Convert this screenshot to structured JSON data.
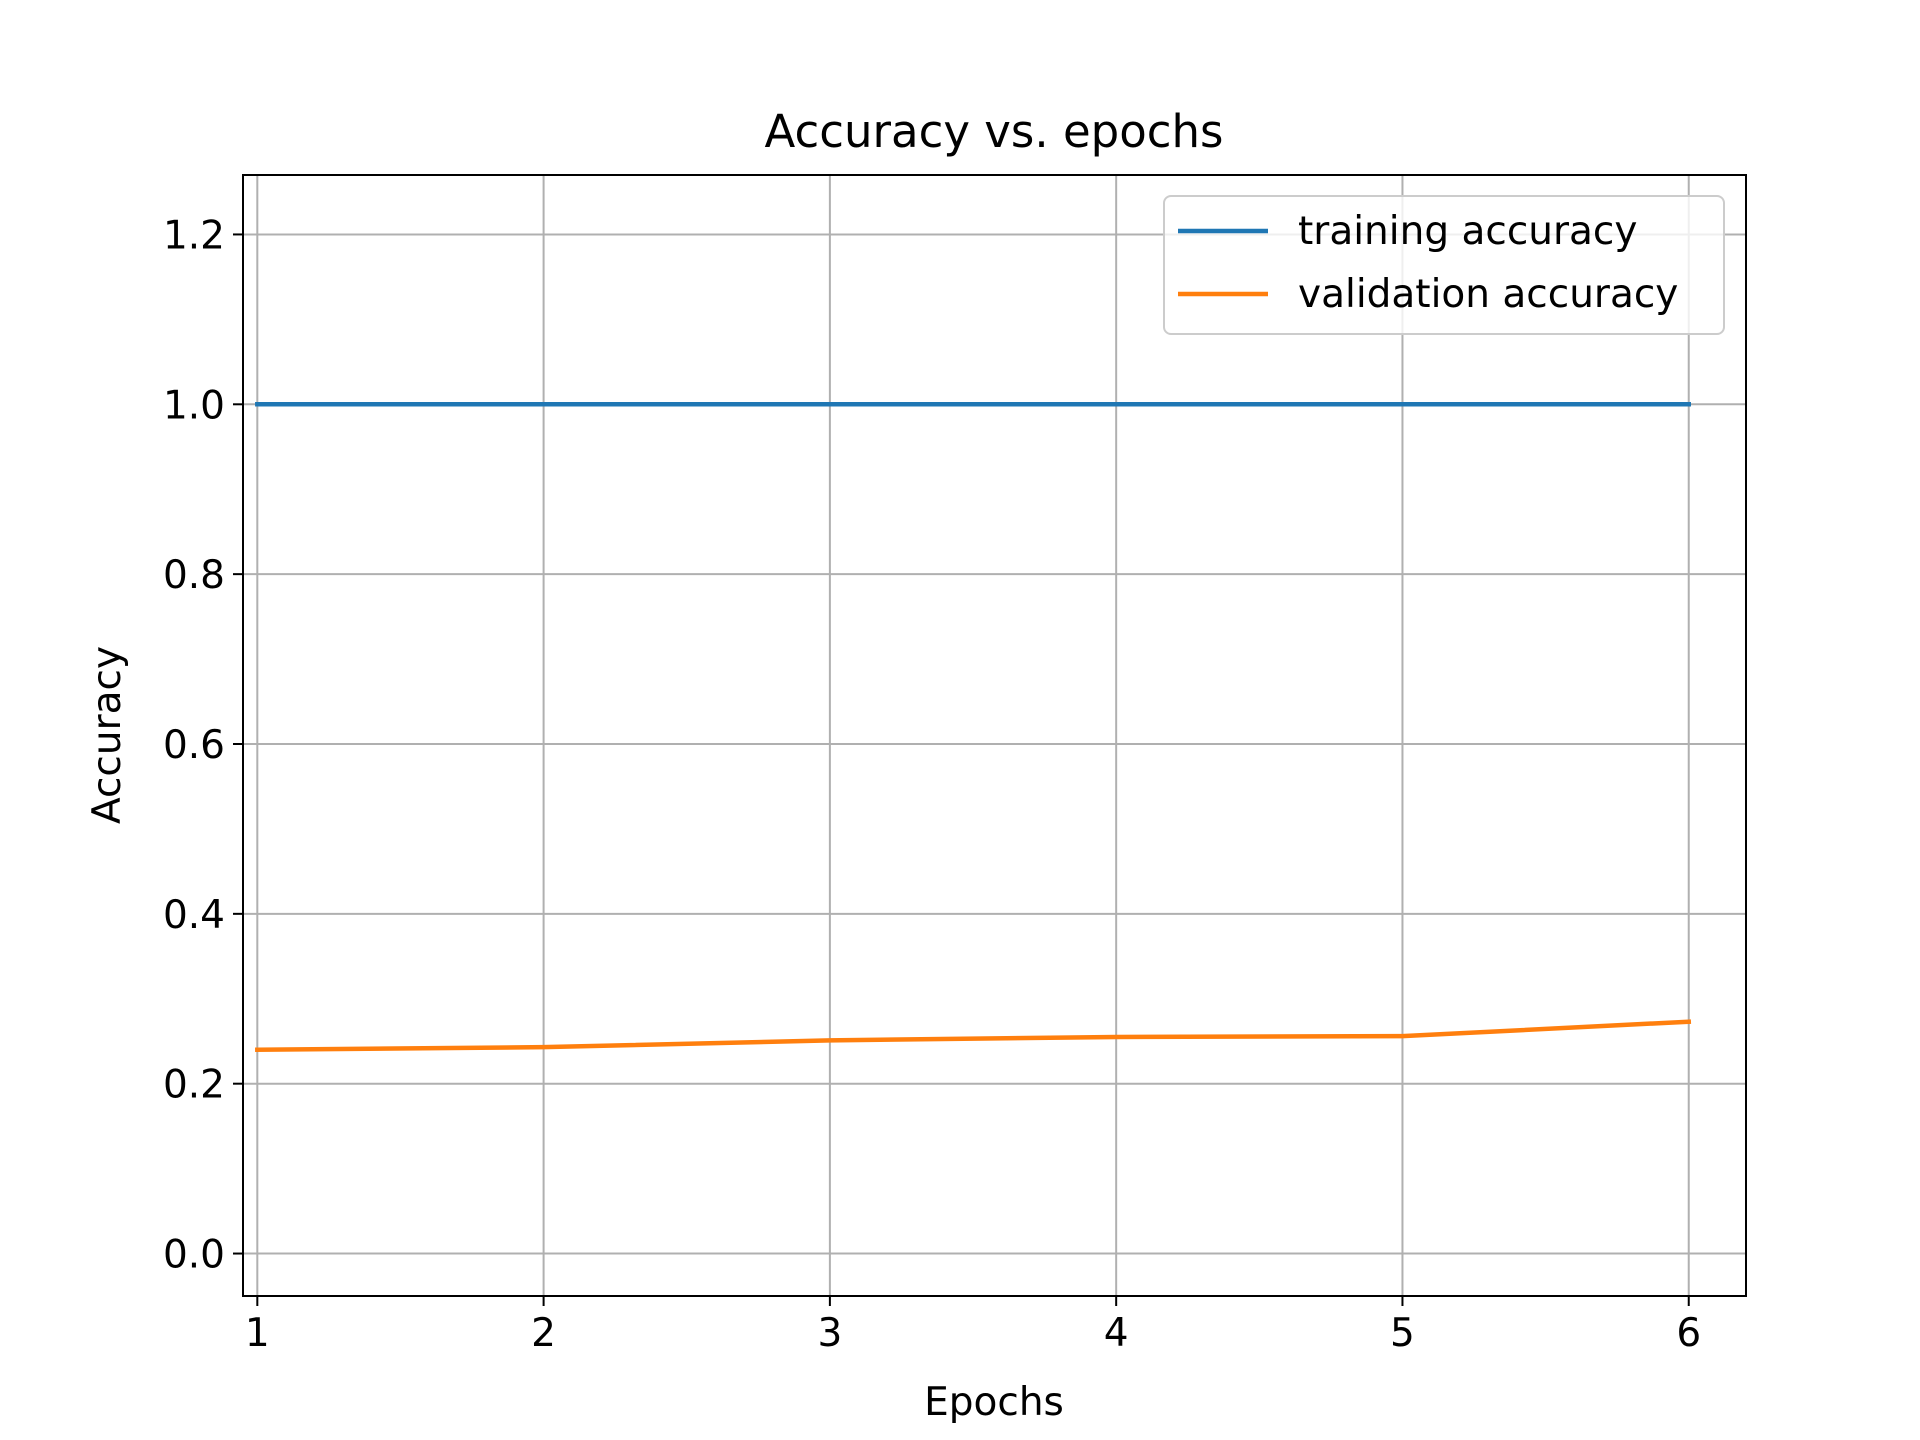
{
  "chart_data": {
    "type": "line",
    "title": "Accuracy vs. epochs",
    "xlabel": "Epochs",
    "ylabel": "Accuracy",
    "x": [
      1,
      2,
      3,
      4,
      5,
      6
    ],
    "xlim": [
      0.95,
      6.2
    ],
    "ylim": [
      -0.05,
      1.27
    ],
    "xticks": [
      1,
      2,
      3,
      4,
      5,
      6
    ],
    "yticks": [
      0.0,
      0.2,
      0.4,
      0.6,
      0.8,
      1.0,
      1.2
    ],
    "ytick_labels": [
      "0.0",
      "0.2",
      "0.4",
      "0.6",
      "0.8",
      "1.0",
      "1.2"
    ],
    "grid": true,
    "legend_position": "top-right",
    "series": [
      {
        "name": "training accuracy",
        "color": "#1f77b4",
        "values": [
          1.0,
          1.0,
          1.0,
          1.0,
          1.0,
          1.0
        ]
      },
      {
        "name": "validation accuracy",
        "color": "#ff7f0e",
        "values": [
          0.24,
          0.243,
          0.251,
          0.255,
          0.256,
          0.273
        ]
      }
    ]
  }
}
